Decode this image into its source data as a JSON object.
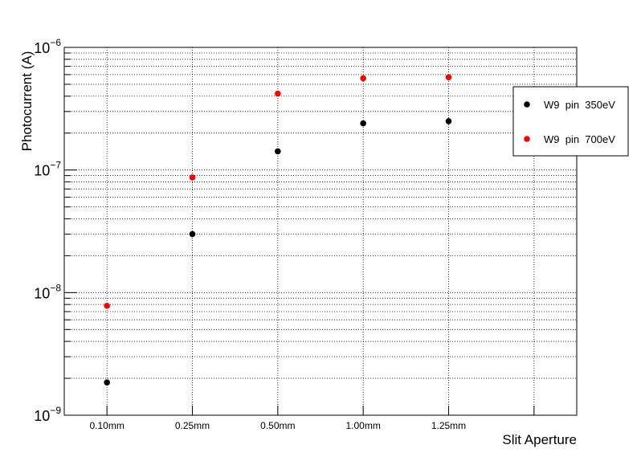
{
  "chart_data": {
    "type": "scatter",
    "title": "",
    "xlabel": "Slit Aperture",
    "ylabel": "Photocurrent (A)",
    "y_scale": "log",
    "ylim": [
      1e-09,
      1e-06
    ],
    "y_ticks": [
      {
        "value": 1e-09,
        "base": "10",
        "exp": "−9"
      },
      {
        "value": 1e-08,
        "base": "10",
        "exp": "−8"
      },
      {
        "value": 1e-07,
        "base": "10",
        "exp": "−7"
      },
      {
        "value": 1e-06,
        "base": "10",
        "exp": "−6"
      }
    ],
    "categories": [
      "0.10mm",
      "0.25mm",
      "0.50mm",
      "1.00mm",
      "1.25mm"
    ],
    "grid": true,
    "legend_position": "right",
    "series": [
      {
        "name": "W9  pin  350eV",
        "color": "#000000",
        "values": [
          1.85e-09,
          3e-08,
          1.42e-07,
          2.4e-07,
          2.5e-07
        ]
      },
      {
        "name": "W9  pin  700eV",
        "color": "#ff0000",
        "values": [
          7.8e-09,
          8.7e-08,
          4.2e-07,
          5.6e-07,
          5.7e-07
        ]
      }
    ]
  }
}
